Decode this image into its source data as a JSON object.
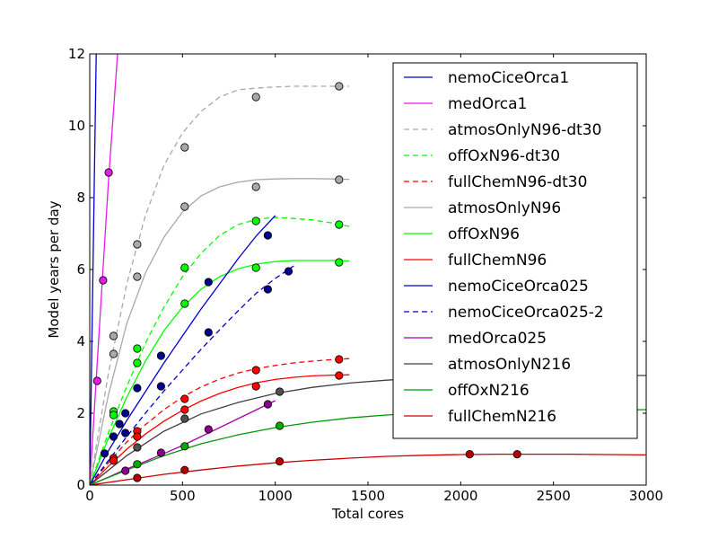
{
  "chart_data": {
    "type": "line",
    "title": "",
    "xlabel": "Total cores",
    "ylabel": "Model years per day",
    "xlim": [
      0,
      3000
    ],
    "ylim": [
      0,
      12
    ],
    "xticks": [
      0,
      500,
      1000,
      1500,
      2000,
      2500,
      3000
    ],
    "yticks": [
      0,
      2,
      4,
      6,
      8,
      10,
      12
    ],
    "grid": false,
    "legend_position": "top-right",
    "series": [
      {
        "name": "nemoCiceOrca1",
        "color": "#0000cc",
        "dash": "solid",
        "fit_x": [
          0,
          35
        ],
        "fit_y": [
          0,
          12
        ],
        "points": []
      },
      {
        "name": "medOrca1",
        "color": "#e61ae6",
        "dash": "solid",
        "fit_x": [
          0,
          50,
          100,
          150
        ],
        "fit_y": [
          0,
          4.2,
          8.4,
          12
        ],
        "points": [
          [
            40,
            2.9
          ],
          [
            72,
            5.7
          ],
          [
            102,
            8.7
          ]
        ]
      },
      {
        "name": "atmosOnlyN96-dt30",
        "color": "#a9a9a9",
        "dash": "dashed",
        "fit_x": [
          0,
          100,
          200,
          300,
          400,
          500,
          600,
          700,
          800,
          900,
          1000,
          1100,
          1200,
          1300,
          1400
        ],
        "fit_y": [
          0,
          3.1,
          5.6,
          7.5,
          8.9,
          9.8,
          10.4,
          10.8,
          11.0,
          11.05,
          11.08,
          11.1,
          11.1,
          11.1,
          11.1
        ],
        "points": [
          [
            128,
            4.15
          ],
          [
            256,
            6.7
          ],
          [
            512,
            9.4
          ],
          [
            896,
            10.8
          ],
          [
            1344,
            11.1
          ]
        ]
      },
      {
        "name": "offOxN96-dt30",
        "color": "#00ff00",
        "dash": "dashed",
        "fit_x": [
          0,
          100,
          200,
          300,
          400,
          500,
          600,
          700,
          800,
          900,
          1000,
          1100,
          1200,
          1300,
          1400
        ],
        "fit_y": [
          0,
          1.45,
          2.75,
          3.95,
          4.95,
          5.8,
          6.45,
          6.95,
          7.25,
          7.4,
          7.45,
          7.42,
          7.38,
          7.3,
          7.2
        ],
        "points": [
          [
            128,
            2.05
          ],
          [
            256,
            3.8
          ],
          [
            512,
            6.05
          ],
          [
            896,
            7.35
          ],
          [
            1344,
            7.25
          ]
        ]
      },
      {
        "name": "fullChemN96-dt30",
        "color": "#ff0000",
        "dash": "dashed",
        "fit_x": [
          0,
          100,
          200,
          300,
          400,
          500,
          600,
          700,
          800,
          900,
          1000,
          1100,
          1200,
          1300,
          1400
        ],
        "fit_y": [
          0,
          0.62,
          1.2,
          1.68,
          2.1,
          2.45,
          2.73,
          2.95,
          3.12,
          3.24,
          3.33,
          3.4,
          3.45,
          3.49,
          3.52
        ],
        "points": [
          [
            128,
            0.75
          ],
          [
            256,
            1.5
          ],
          [
            512,
            2.4
          ],
          [
            896,
            3.2
          ],
          [
            1344,
            3.5
          ]
        ]
      },
      {
        "name": "atmosOnlyN96",
        "color": "#a9a9a9",
        "dash": "solid",
        "fit_x": [
          0,
          100,
          200,
          300,
          400,
          500,
          600,
          700,
          800,
          900,
          1000,
          1100,
          1200,
          1300,
          1400
        ],
        "fit_y": [
          0,
          2.5,
          4.5,
          5.9,
          6.9,
          7.6,
          8.05,
          8.3,
          8.43,
          8.5,
          8.52,
          8.53,
          8.53,
          8.52,
          8.51
        ],
        "points": [
          [
            128,
            3.65
          ],
          [
            256,
            5.8
          ],
          [
            512,
            7.75
          ],
          [
            896,
            8.3
          ],
          [
            1344,
            8.5
          ]
        ]
      },
      {
        "name": "offOxN96",
        "color": "#00ff00",
        "dash": "solid",
        "fit_x": [
          0,
          100,
          200,
          300,
          400,
          500,
          600,
          700,
          800,
          900,
          1000,
          1100,
          1200,
          1300,
          1400
        ],
        "fit_y": [
          0,
          1.3,
          2.45,
          3.45,
          4.3,
          4.95,
          5.45,
          5.8,
          6.02,
          6.15,
          6.22,
          6.25,
          6.25,
          6.25,
          6.24
        ],
        "points": [
          [
            128,
            1.95
          ],
          [
            256,
            3.4
          ],
          [
            512,
            5.05
          ],
          [
            896,
            6.05
          ],
          [
            1344,
            6.2
          ]
        ]
      },
      {
        "name": "fullChemN96",
        "color": "#ff0000",
        "dash": "solid",
        "fit_x": [
          0,
          100,
          200,
          300,
          400,
          500,
          600,
          700,
          800,
          900,
          1000,
          1100,
          1200,
          1300,
          1400
        ],
        "fit_y": [
          0,
          0.52,
          1.0,
          1.42,
          1.78,
          2.08,
          2.34,
          2.55,
          2.72,
          2.85,
          2.94,
          3.0,
          3.04,
          3.06,
          3.07
        ],
        "points": [
          [
            128,
            0.68
          ],
          [
            256,
            1.35
          ],
          [
            512,
            2.1
          ],
          [
            896,
            2.75
          ],
          [
            1344,
            3.05
          ]
        ]
      },
      {
        "name": "nemoCiceOrca025",
        "color": "#0000cc",
        "dash": "solid",
        "fit_x": [
          0,
          100,
          200,
          300,
          400,
          500,
          600,
          700,
          800,
          900,
          1000
        ],
        "fit_y": [
          0,
          0.95,
          1.8,
          2.6,
          3.4,
          4.15,
          4.9,
          5.6,
          6.3,
          6.95,
          7.5
        ],
        "points": [
          [
            80,
            0.88
          ],
          [
            128,
            1.35
          ],
          [
            160,
            1.7
          ],
          [
            192,
            2.0
          ],
          [
            256,
            2.7
          ],
          [
            384,
            3.6
          ],
          [
            640,
            5.65
          ],
          [
            960,
            6.95
          ]
        ],
        "point_color": "#00008b"
      },
      {
        "name": "nemoCiceOrca025-2",
        "color": "#0000cc",
        "dash": "dashed",
        "fit_x": [
          0,
          100,
          200,
          300,
          400,
          500,
          600,
          700,
          800,
          900,
          1000,
          1100
        ],
        "fit_y": [
          0,
          0.68,
          1.35,
          2.0,
          2.62,
          3.2,
          3.78,
          4.32,
          4.85,
          5.35,
          5.75,
          6.1
        ],
        "points": [
          [
            192,
            1.45
          ],
          [
            384,
            2.75
          ],
          [
            640,
            4.25
          ],
          [
            960,
            5.45
          ],
          [
            1072,
            5.95
          ]
        ],
        "point_color": "#00008b"
      },
      {
        "name": "medOrca025",
        "color": "#aa00aa",
        "dash": "solid",
        "fit_x": [
          0,
          100,
          200,
          300,
          400,
          500,
          600,
          700,
          800,
          900,
          1000
        ],
        "fit_y": [
          0,
          0.22,
          0.45,
          0.66,
          0.88,
          1.1,
          1.35,
          1.6,
          1.85,
          2.1,
          2.35
        ],
        "points": [
          [
            192,
            0.4
          ],
          [
            384,
            0.9
          ],
          [
            640,
            1.55
          ],
          [
            960,
            2.25
          ]
        ],
        "point_color": "#8b008b"
      },
      {
        "name": "atmosOnlyN216",
        "color": "#404040",
        "dash": "solid",
        "fit_x": [
          0,
          200,
          400,
          600,
          800,
          1000,
          1200,
          1400,
          1600,
          1800,
          2000,
          2200,
          2400,
          2600,
          2800,
          3000
        ],
        "fit_y": [
          0,
          0.82,
          1.5,
          1.98,
          2.3,
          2.55,
          2.72,
          2.84,
          2.92,
          2.98,
          3.01,
          3.03,
          3.04,
          3.05,
          3.05,
          3.05
        ],
        "points": [
          [
            256,
            1.05
          ],
          [
            512,
            1.85
          ],
          [
            1024,
            2.6
          ]
        ],
        "point_color": "#505050"
      },
      {
        "name": "offOxN216",
        "color": "#009900",
        "dash": "solid",
        "fit_x": [
          0,
          200,
          400,
          600,
          800,
          1000,
          1200,
          1400,
          1600,
          1800,
          2000,
          2200,
          2400,
          2600,
          2800,
          3000
        ],
        "fit_y": [
          0,
          0.42,
          0.82,
          1.15,
          1.4,
          1.6,
          1.75,
          1.87,
          1.95,
          2.01,
          2.05,
          2.07,
          2.08,
          2.09,
          2.09,
          2.1
        ],
        "points": [
          [
            256,
            0.58
          ],
          [
            512,
            1.08
          ],
          [
            1024,
            1.65
          ]
        ],
        "point_color": "#00aa00"
      },
      {
        "name": "fullChemN216",
        "color": "#cc0000",
        "dash": "solid",
        "fit_x": [
          0,
          200,
          400,
          600,
          800,
          1000,
          1200,
          1400,
          1600,
          1800,
          2000,
          2200,
          2400,
          2600,
          2800,
          3000
        ],
        "fit_y": [
          0,
          0.15,
          0.3,
          0.42,
          0.53,
          0.62,
          0.69,
          0.75,
          0.8,
          0.83,
          0.85,
          0.86,
          0.86,
          0.86,
          0.85,
          0.84
        ],
        "points": [
          [
            256,
            0.2
          ],
          [
            512,
            0.42
          ],
          [
            1024,
            0.66
          ],
          [
            2048,
            0.86
          ],
          [
            2304,
            0.86
          ]
        ],
        "point_color": "#b20000"
      }
    ]
  }
}
